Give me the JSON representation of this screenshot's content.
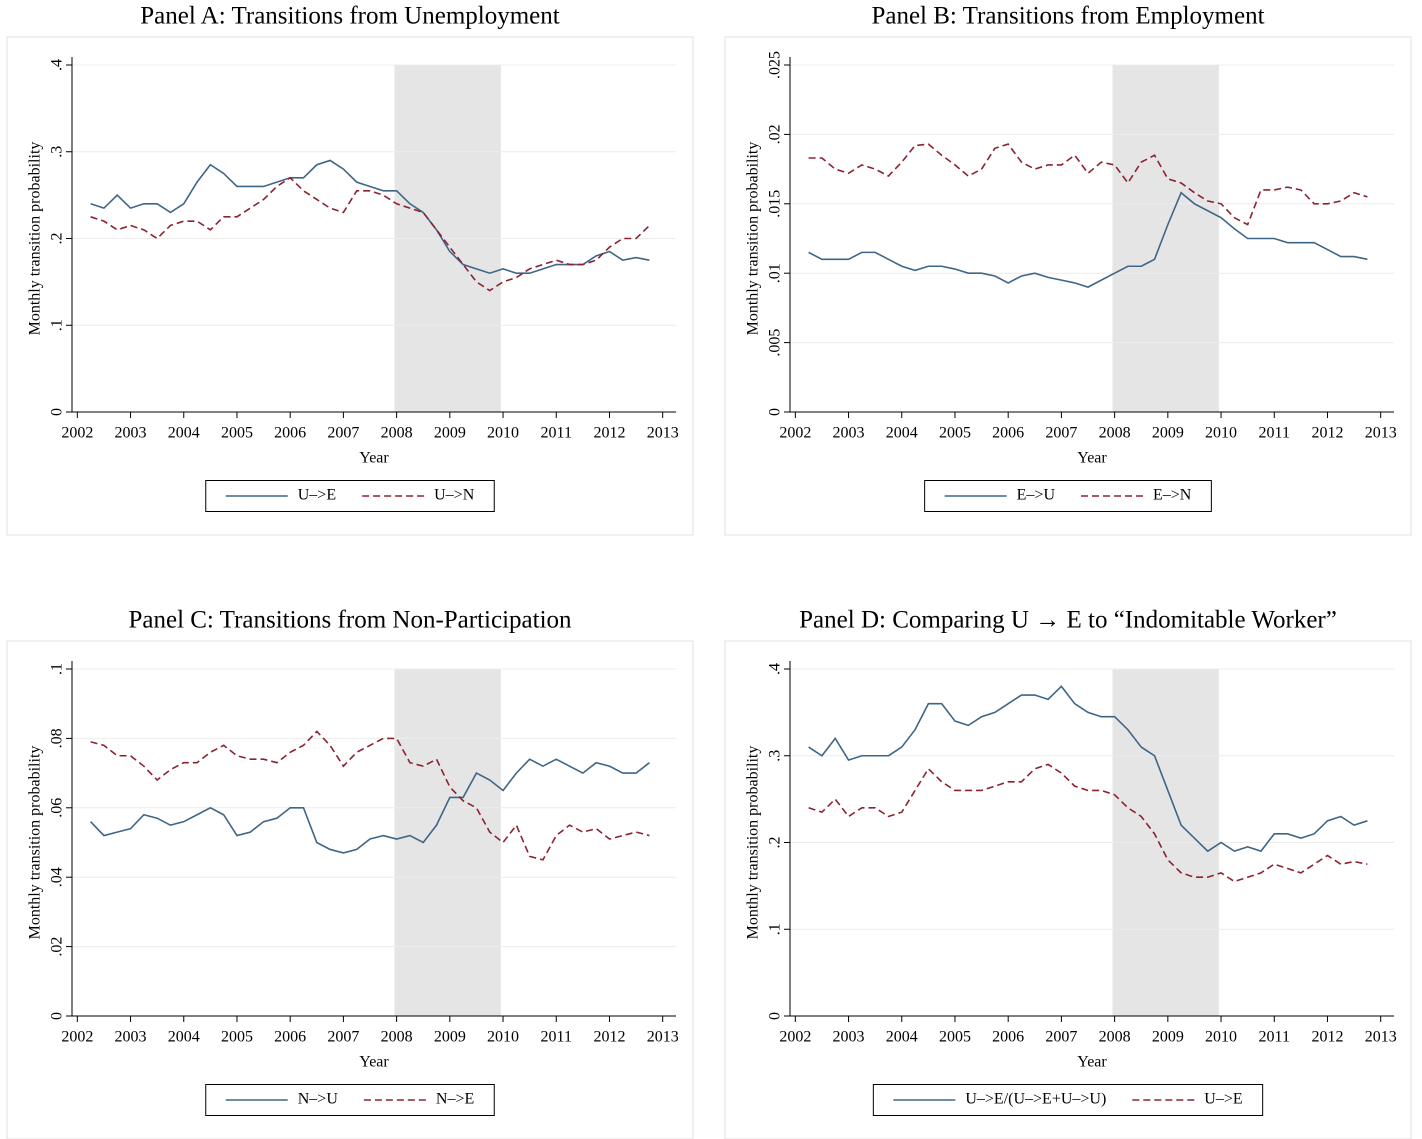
{
  "chart_data": [
    {
      "type": "line",
      "title": "Panel A: Transitions from Unemployment",
      "xlabel": "Year",
      "ylabel": "Monthly transition probability",
      "x": [
        2002.25,
        2002.5,
        2002.75,
        2003,
        2003.25,
        2003.5,
        2003.75,
        2004,
        2004.25,
        2004.5,
        2004.75,
        2005,
        2005.25,
        2005.5,
        2005.75,
        2006,
        2006.25,
        2006.5,
        2006.75,
        2007,
        2007.25,
        2007.5,
        2007.75,
        2008,
        2008.25,
        2008.5,
        2008.75,
        2009,
        2009.25,
        2009.5,
        2009.75,
        2010,
        2010.25,
        2010.5,
        2010.75,
        2011,
        2011.25,
        2011.5,
        2011.75,
        2012,
        2012.25,
        2012.5,
        2012.75
      ],
      "series": [
        {
          "name": "U–>E",
          "color": "#3e6688",
          "dash": false,
          "values": [
            0.24,
            0.235,
            0.25,
            0.235,
            0.24,
            0.24,
            0.23,
            0.24,
            0.265,
            0.285,
            0.275,
            0.26,
            0.26,
            0.26,
            0.265,
            0.27,
            0.27,
            0.285,
            0.29,
            0.28,
            0.265,
            0.26,
            0.255,
            0.255,
            0.24,
            0.23,
            0.21,
            0.185,
            0.17,
            0.165,
            0.16,
            0.165,
            0.16,
            0.16,
            0.165,
            0.17,
            0.17,
            0.17,
            0.18,
            0.185,
            0.175,
            0.178,
            0.175
          ]
        },
        {
          "name": "U–>N",
          "color": "#8b2332",
          "dash": true,
          "values": [
            0.225,
            0.22,
            0.21,
            0.215,
            0.21,
            0.2,
            0.215,
            0.22,
            0.22,
            0.21,
            0.225,
            0.225,
            0.235,
            0.245,
            0.26,
            0.27,
            0.255,
            0.245,
            0.235,
            0.23,
            0.255,
            0.255,
            0.25,
            0.24,
            0.235,
            0.23,
            0.21,
            0.19,
            0.17,
            0.15,
            0.14,
            0.15,
            0.155,
            0.165,
            0.17,
            0.175,
            0.17,
            0.17,
            0.175,
            0.19,
            0.2,
            0.2,
            0.215
          ]
        }
      ],
      "shaded_xrange": [
        2007.96,
        2009.96
      ],
      "xlim": [
        2001.9,
        2013.25
      ],
      "xticks": [
        2002,
        2003,
        2004,
        2005,
        2006,
        2007,
        2008,
        2009,
        2010,
        2011,
        2012,
        2013
      ],
      "ylim": [
        0,
        0.4
      ],
      "yticks": [
        0,
        {
          "value": 0.1,
          "label": ".1"
        },
        {
          "value": 0.2,
          "label": ".2"
        },
        {
          "value": 0.3,
          "label": ".3"
        },
        {
          "value": 0.4,
          "label": ".4"
        }
      ],
      "grid": true
    },
    {
      "type": "line",
      "title": "Panel B: Transitions from Employment",
      "xlabel": "Year",
      "ylabel": "Monthly transition probability",
      "x": [
        2002.25,
        2002.5,
        2002.75,
        2003,
        2003.25,
        2003.5,
        2003.75,
        2004,
        2004.25,
        2004.5,
        2004.75,
        2005,
        2005.25,
        2005.5,
        2005.75,
        2006,
        2006.25,
        2006.5,
        2006.75,
        2007,
        2007.25,
        2007.5,
        2007.75,
        2008,
        2008.25,
        2008.5,
        2008.75,
        2009,
        2009.25,
        2009.5,
        2009.75,
        2010,
        2010.25,
        2010.5,
        2010.75,
        2011,
        2011.25,
        2011.5,
        2011.75,
        2012,
        2012.25,
        2012.5,
        2012.75
      ],
      "series": [
        {
          "name": "E–>U",
          "color": "#3e6688",
          "dash": false,
          "values": [
            0.0115,
            0.011,
            0.011,
            0.011,
            0.0115,
            0.0115,
            0.011,
            0.0105,
            0.0102,
            0.0105,
            0.0105,
            0.0103,
            0.01,
            0.01,
            0.0098,
            0.0093,
            0.0098,
            0.01,
            0.0097,
            0.0095,
            0.0093,
            0.009,
            0.0095,
            0.01,
            0.0105,
            0.0105,
            0.011,
            0.0135,
            0.0158,
            0.015,
            0.0145,
            0.014,
            0.0132,
            0.0125,
            0.0125,
            0.0125,
            0.0122,
            0.0122,
            0.0122,
            0.0117,
            0.0112,
            0.0112,
            0.011
          ]
        },
        {
          "name": "E–>N",
          "color": "#8b2332",
          "dash": true,
          "values": [
            0.0183,
            0.0183,
            0.0175,
            0.0172,
            0.0178,
            0.0175,
            0.017,
            0.018,
            0.0192,
            0.0193,
            0.0185,
            0.0178,
            0.017,
            0.0175,
            0.019,
            0.0193,
            0.018,
            0.0175,
            0.0178,
            0.0178,
            0.0185,
            0.0172,
            0.018,
            0.0178,
            0.0165,
            0.018,
            0.0185,
            0.0168,
            0.0165,
            0.0158,
            0.0152,
            0.015,
            0.014,
            0.0135,
            0.016,
            0.016,
            0.0162,
            0.016,
            0.015,
            0.015,
            0.0152,
            0.0158,
            0.0155
          ]
        }
      ],
      "shaded_xrange": [
        2007.96,
        2009.96
      ],
      "xlim": [
        2001.9,
        2013.25
      ],
      "xticks": [
        2002,
        2003,
        2004,
        2005,
        2006,
        2007,
        2008,
        2009,
        2010,
        2011,
        2012,
        2013
      ],
      "ylim": [
        0,
        0.025
      ],
      "yticks": [
        0,
        {
          "value": 0.005,
          "label": ".005"
        },
        {
          "value": 0.01,
          "label": ".01"
        },
        {
          "value": 0.015,
          "label": ".015"
        },
        {
          "value": 0.02,
          "label": ".02"
        },
        {
          "value": 0.025,
          "label": ".025"
        }
      ],
      "grid": true
    },
    {
      "type": "line",
      "title": "Panel C: Transitions from Non-Participation",
      "xlabel": "Year",
      "ylabel": "Monthly transition probability",
      "x": [
        2002.25,
        2002.5,
        2002.75,
        2003,
        2003.25,
        2003.5,
        2003.75,
        2004,
        2004.25,
        2004.5,
        2004.75,
        2005,
        2005.25,
        2005.5,
        2005.75,
        2006,
        2006.25,
        2006.5,
        2006.75,
        2007,
        2007.25,
        2007.5,
        2007.75,
        2008,
        2008.25,
        2008.5,
        2008.75,
        2009,
        2009.25,
        2009.5,
        2009.75,
        2010,
        2010.25,
        2010.5,
        2010.75,
        2011,
        2011.25,
        2011.5,
        2011.75,
        2012,
        2012.25,
        2012.5,
        2012.75
      ],
      "series": [
        {
          "name": "N–>U",
          "color": "#3e6688",
          "dash": false,
          "values": [
            0.056,
            0.052,
            0.053,
            0.054,
            0.058,
            0.057,
            0.055,
            0.056,
            0.058,
            0.06,
            0.058,
            0.052,
            0.053,
            0.056,
            0.057,
            0.06,
            0.06,
            0.05,
            0.048,
            0.047,
            0.048,
            0.051,
            0.052,
            0.051,
            0.052,
            0.05,
            0.055,
            0.063,
            0.063,
            0.07,
            0.068,
            0.065,
            0.07,
            0.074,
            0.072,
            0.074,
            0.072,
            0.07,
            0.073,
            0.072,
            0.07,
            0.07,
            0.073
          ]
        },
        {
          "name": "N–>E",
          "color": "#8b2332",
          "dash": true,
          "values": [
            0.079,
            0.078,
            0.075,
            0.075,
            0.072,
            0.068,
            0.071,
            0.073,
            0.073,
            0.076,
            0.078,
            0.075,
            0.074,
            0.074,
            0.073,
            0.076,
            0.078,
            0.082,
            0.078,
            0.072,
            0.076,
            0.078,
            0.08,
            0.08,
            0.073,
            0.072,
            0.074,
            0.066,
            0.062,
            0.06,
            0.053,
            0.05,
            0.055,
            0.046,
            0.045,
            0.052,
            0.055,
            0.053,
            0.054,
            0.051,
            0.052,
            0.053,
            0.052
          ]
        }
      ],
      "shaded_xrange": [
        2007.96,
        2009.96
      ],
      "xlim": [
        2001.9,
        2013.25
      ],
      "xticks": [
        2002,
        2003,
        2004,
        2005,
        2006,
        2007,
        2008,
        2009,
        2010,
        2011,
        2012,
        2013
      ],
      "ylim": [
        0,
        0.1
      ],
      "yticks": [
        0,
        {
          "value": 0.02,
          "label": ".02"
        },
        {
          "value": 0.04,
          "label": ".04"
        },
        {
          "value": 0.06,
          "label": ".06"
        },
        {
          "value": 0.08,
          "label": ".08"
        },
        {
          "value": 0.1,
          "label": ".1"
        }
      ],
      "grid": true
    },
    {
      "type": "line",
      "title": "Panel D: Comparing U → E to “Indomitable Worker”",
      "xlabel": "Year",
      "ylabel": "Monthly transition probability",
      "x": [
        2002.25,
        2002.5,
        2002.75,
        2003,
        2003.25,
        2003.5,
        2003.75,
        2004,
        2004.25,
        2004.5,
        2004.75,
        2005,
        2005.25,
        2005.5,
        2005.75,
        2006,
        2006.25,
        2006.5,
        2006.75,
        2007,
        2007.25,
        2007.5,
        2007.75,
        2008,
        2008.25,
        2008.5,
        2008.75,
        2009,
        2009.25,
        2009.5,
        2009.75,
        2010,
        2010.25,
        2010.5,
        2010.75,
        2011,
        2011.25,
        2011.5,
        2011.75,
        2012,
        2012.25,
        2012.5,
        2012.75
      ],
      "series": [
        {
          "name": "U–>E/(U–>E+U–>U)",
          "color": "#3e6688",
          "dash": false,
          "values": [
            0.31,
            0.3,
            0.32,
            0.295,
            0.3,
            0.3,
            0.3,
            0.31,
            0.33,
            0.36,
            0.36,
            0.34,
            0.335,
            0.345,
            0.35,
            0.36,
            0.37,
            0.37,
            0.365,
            0.38,
            0.36,
            0.35,
            0.345,
            0.345,
            0.33,
            0.31,
            0.3,
            0.26,
            0.22,
            0.205,
            0.19,
            0.2,
            0.19,
            0.195,
            0.19,
            0.21,
            0.21,
            0.205,
            0.21,
            0.225,
            0.23,
            0.22,
            0.225
          ]
        },
        {
          "name": "U–>E",
          "color": "#8b2332",
          "dash": true,
          "values": [
            0.24,
            0.235,
            0.25,
            0.23,
            0.24,
            0.24,
            0.23,
            0.235,
            0.26,
            0.285,
            0.27,
            0.26,
            0.26,
            0.26,
            0.265,
            0.27,
            0.27,
            0.285,
            0.29,
            0.28,
            0.265,
            0.26,
            0.26,
            0.255,
            0.24,
            0.23,
            0.21,
            0.18,
            0.165,
            0.16,
            0.16,
            0.165,
            0.155,
            0.16,
            0.165,
            0.175,
            0.17,
            0.165,
            0.175,
            0.185,
            0.175,
            0.178,
            0.175
          ]
        }
      ],
      "shaded_xrange": [
        2007.96,
        2009.96
      ],
      "xlim": [
        2001.9,
        2013.25
      ],
      "xticks": [
        2002,
        2003,
        2004,
        2005,
        2006,
        2007,
        2008,
        2009,
        2010,
        2011,
        2012,
        2013
      ],
      "ylim": [
        0,
        0.4
      ],
      "yticks": [
        0,
        {
          "value": 0.1,
          "label": ".1"
        },
        {
          "value": 0.2,
          "label": ".2"
        },
        {
          "value": 0.3,
          "label": ".3"
        },
        {
          "value": 0.4,
          "label": ".4"
        }
      ],
      "grid": true
    }
  ]
}
